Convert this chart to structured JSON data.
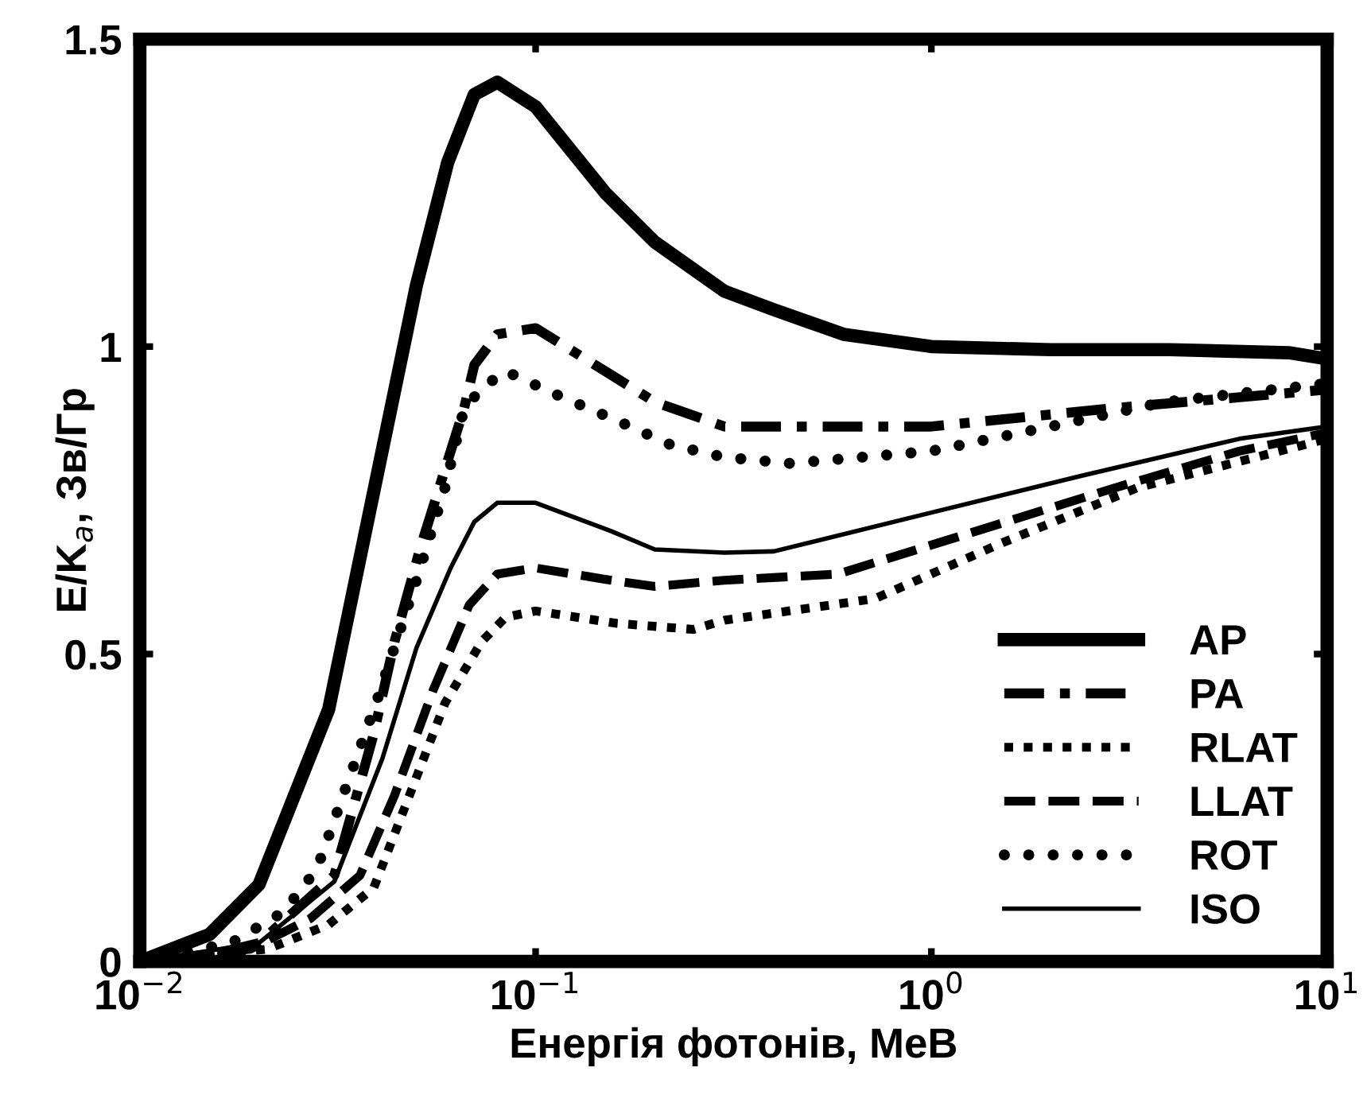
{
  "chart_data": {
    "type": "line",
    "xlabel": "Енергія фотонів, МеВ",
    "ylabel": "E/K$_{a}$, Зв/Гр",
    "log": "x",
    "xlim": [
      0.01,
      10
    ],
    "ylim": [
      0,
      1.5
    ],
    "xticks": [
      {
        "value": 0.01,
        "label": "10$^{−2}$"
      },
      {
        "value": 0.1,
        "label": "10$^{−1}$"
      },
      {
        "value": 1,
        "label": "10$^{0}$"
      },
      {
        "value": 10,
        "label": "10$^{1}$"
      }
    ],
    "yticks": [
      0,
      0.5,
      1,
      1.5
    ],
    "grid": false,
    "legend": "bottom right",
    "series": [
      {
        "name": "AP",
        "color": "#000000",
        "line_style": "solid",
        "x": [
          0.01,
          0.015,
          0.02,
          0.03,
          0.05,
          0.06,
          0.07,
          0.08,
          0.1,
          0.15,
          0.2,
          0.3,
          0.4,
          0.6,
          1,
          2,
          4,
          8,
          10
        ],
        "values": [
          0,
          0.044,
          0.125,
          0.41,
          1.1,
          1.3,
          1.41,
          1.43,
          1.39,
          1.25,
          1.17,
          1.09,
          1.06,
          1.02,
          1.0,
          0.995,
          0.995,
          0.99,
          0.98
        ]
      },
      {
        "name": "PA",
        "color": "#000000",
        "line_style": "dashdot",
        "x": [
          0.01,
          0.015,
          0.02,
          0.031,
          0.039,
          0.044,
          0.051,
          0.059,
          0.066,
          0.07,
          0.08,
          0.1,
          0.2,
          0.3,
          1,
          2.9,
          10
        ],
        "values": [
          0,
          0.01,
          0.03,
          0.14,
          0.37,
          0.52,
          0.67,
          0.8,
          0.9,
          0.97,
          1.02,
          1.03,
          0.91,
          0.87,
          0.87,
          0.9,
          0.93
        ]
      },
      {
        "name": "RLAT",
        "color": "#000000",
        "line_style": "dotted",
        "x": [
          0.01,
          0.021,
          0.03,
          0.039,
          0.048,
          0.059,
          0.073,
          0.084,
          0.1,
          0.16,
          0.25,
          0.3,
          0.72,
          1.5,
          3.3,
          10
        ],
        "values": [
          0,
          0.02,
          0.06,
          0.12,
          0.27,
          0.42,
          0.52,
          0.56,
          0.57,
          0.55,
          0.54,
          0.555,
          0.59,
          0.68,
          0.77,
          0.85
        ]
      },
      {
        "name": "LLAT",
        "color": "#000000",
        "line_style": "dashed",
        "x": [
          0.01,
          0.019,
          0.027,
          0.036,
          0.044,
          0.055,
          0.068,
          0.08,
          0.1,
          0.155,
          0.2,
          0.3,
          0.58,
          1.3,
          2.9,
          6,
          10
        ],
        "values": [
          0,
          0.02,
          0.07,
          0.14,
          0.27,
          0.44,
          0.58,
          0.63,
          0.64,
          0.62,
          0.61,
          0.62,
          0.63,
          0.7,
          0.77,
          0.83,
          0.86
        ]
      },
      {
        "name": "ROT",
        "color": "#000000",
        "line_style": "dotted",
        "x": [
          0.01,
          0.017,
          0.023,
          0.028,
          0.04,
          0.05,
          0.059,
          0.066,
          0.074,
          0.084,
          0.11,
          0.16,
          0.22,
          0.3,
          0.44,
          1,
          2,
          3.9,
          10
        ],
        "values": [
          0,
          0.03,
          0.08,
          0.15,
          0.43,
          0.62,
          0.77,
          0.9,
          0.935,
          0.96,
          0.925,
          0.88,
          0.84,
          0.82,
          0.81,
          0.83,
          0.87,
          0.91,
          0.94
        ]
      },
      {
        "name": "ISO",
        "color": "#000000",
        "line_style": "solid",
        "x": [
          0.01,
          0.02,
          0.031,
          0.041,
          0.05,
          0.061,
          0.07,
          0.08,
          0.1,
          0.155,
          0.2,
          0.3,
          0.4,
          1,
          2.4,
          6,
          10
        ],
        "values": [
          0,
          0.03,
          0.13,
          0.33,
          0.51,
          0.64,
          0.715,
          0.746,
          0.746,
          0.7,
          0.67,
          0.665,
          0.667,
          0.73,
          0.79,
          0.85,
          0.87
        ]
      }
    ]
  }
}
